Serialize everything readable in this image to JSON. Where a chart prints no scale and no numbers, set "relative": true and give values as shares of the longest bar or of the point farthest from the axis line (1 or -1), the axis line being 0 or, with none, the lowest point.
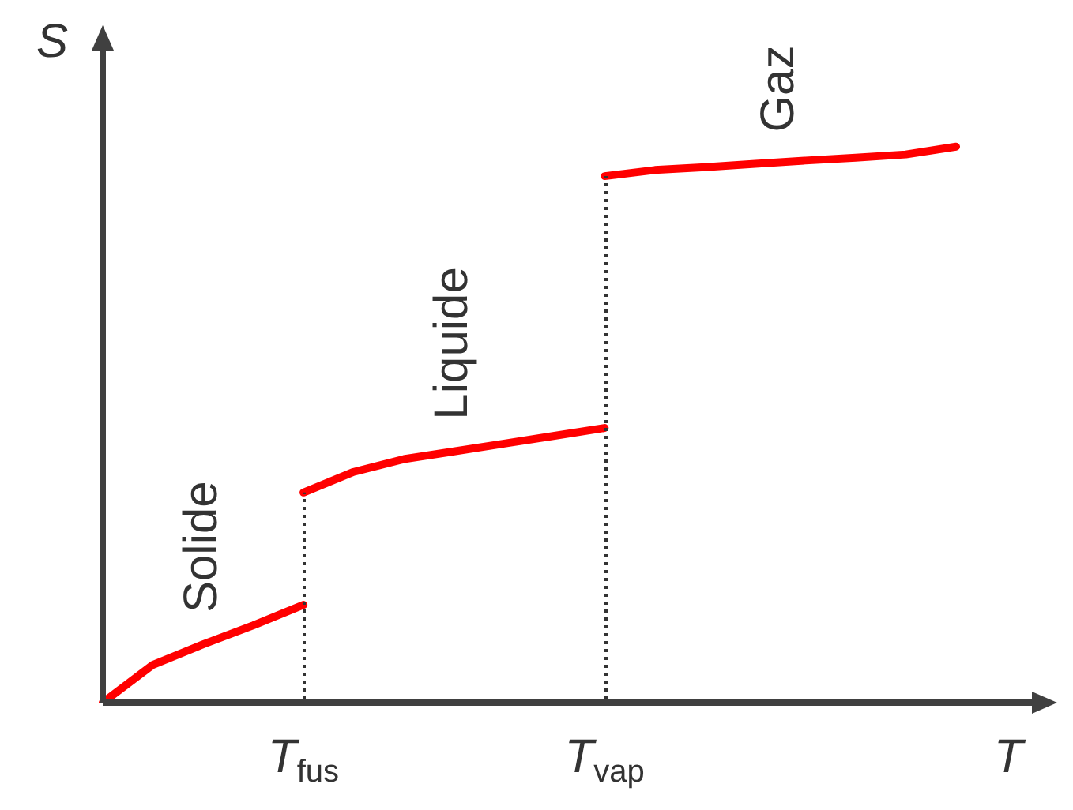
{
  "chart_data": {
    "type": "line",
    "relative": true,
    "xlabel": "T",
    "ylabel": "S",
    "categories": [
      null,
      null,
      null,
      null,
      "T$_{fus}$",
      null,
      null,
      null,
      null,
      null,
      "T$_{vap}$",
      null,
      null,
      null,
      null,
      null,
      null,
      null
    ],
    "series": [
      {
        "name": "Solide",
        "color": "#ff0000",
        "values": [
          0,
          0.068,
          0.105,
          0.139,
          0.176,
          null,
          null,
          null,
          null,
          null,
          null,
          null,
          null,
          null,
          null,
          null,
          null,
          null
        ]
      },
      {
        "name": "Liquide",
        "color": "#ff0000",
        "values": [
          null,
          null,
          null,
          null,
          0.378,
          0.415,
          0.438,
          0.452,
          0.466,
          0.48,
          0.494,
          null,
          null,
          null,
          null,
          null,
          null,
          null
        ]
      },
      {
        "name": "Gaz",
        "color": "#ff0000",
        "values": [
          null,
          null,
          null,
          null,
          null,
          null,
          null,
          null,
          null,
          null,
          0.947,
          0.958,
          0.963,
          0.969,
          0.975,
          0.98,
          0.986,
          1
        ]
      }
    ],
    "ref_lines": [
      {
        "axis": "x",
        "value": "T$_{fus}$",
        "color": "#333333",
        "line_style": "dotted"
      },
      {
        "axis": "x",
        "value": "T$_{vap}$",
        "color": "#333333",
        "line_style": "dotted"
      }
    ],
    "legend": false,
    "marker": "none",
    "line_style": "solid"
  }
}
